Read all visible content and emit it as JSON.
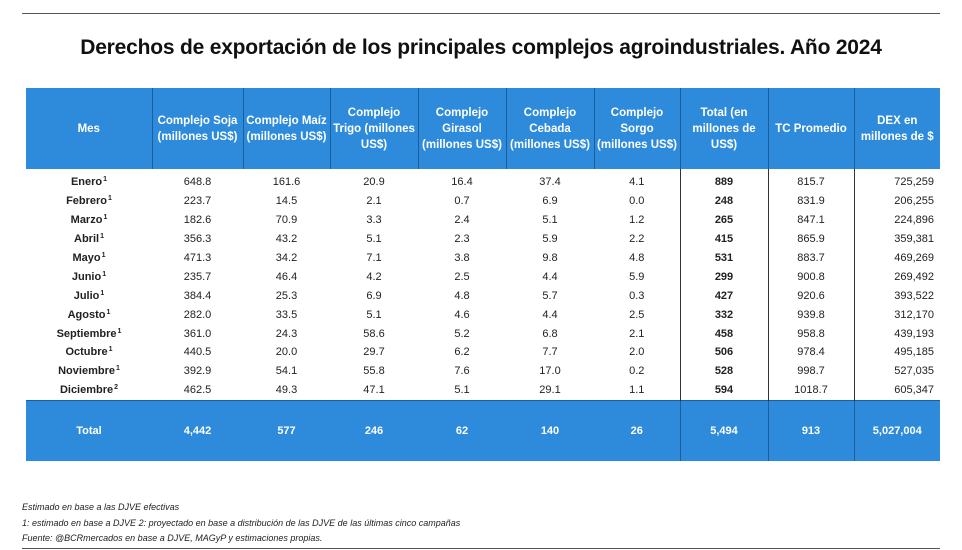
{
  "chart_data": {
    "type": "table",
    "title": "Derechos de exportación de los principales complejos agroindustriales. Año 2024",
    "columns": [
      "Mes",
      "Complejo Soja (millones US$)",
      "Complejo Maíz (millones US$)",
      "Complejo Trigo (millones US$)",
      "Complejo Girasol (millones US$)",
      "Complejo Cebada (millones US$)",
      "Complejo Sorgo (millones US$)",
      "Total (en millones de US$)",
      "TC Promedio",
      "DEX en millones de $"
    ],
    "rows": [
      {
        "mes": "Enero",
        "nota": "1",
        "values": [
          "648.8",
          "161.6",
          "20.9",
          "16.4",
          "37.4",
          "4.1",
          "889",
          "815.7",
          "725,259"
        ]
      },
      {
        "mes": "Febrero",
        "nota": "1",
        "values": [
          "223.7",
          "14.5",
          "2.1",
          "0.7",
          "6.9",
          "0.0",
          "248",
          "831.9",
          "206,255"
        ]
      },
      {
        "mes": "Marzo",
        "nota": "1",
        "values": [
          "182.6",
          "70.9",
          "3.3",
          "2.4",
          "5.1",
          "1.2",
          "265",
          "847.1",
          "224,896"
        ]
      },
      {
        "mes": "Abril",
        "nota": "1",
        "values": [
          "356.3",
          "43.2",
          "5.1",
          "2.3",
          "5.9",
          "2.2",
          "415",
          "865.9",
          "359,381"
        ]
      },
      {
        "mes": "Mayo",
        "nota": "1",
        "values": [
          "471.3",
          "34.2",
          "7.1",
          "3.8",
          "9.8",
          "4.8",
          "531",
          "883.7",
          "469,269"
        ]
      },
      {
        "mes": "Junio",
        "nota": "1",
        "values": [
          "235.7",
          "46.4",
          "4.2",
          "2.5",
          "4.4",
          "5.9",
          "299",
          "900.8",
          "269,492"
        ]
      },
      {
        "mes": "Julio",
        "nota": "1",
        "values": [
          "384.4",
          "25.3",
          "6.9",
          "4.8",
          "5.7",
          "0.3",
          "427",
          "920.6",
          "393,522"
        ]
      },
      {
        "mes": "Agosto",
        "nota": "1",
        "values": [
          "282.0",
          "33.5",
          "5.1",
          "4.6",
          "4.4",
          "2.5",
          "332",
          "939.8",
          "312,170"
        ]
      },
      {
        "mes": "Septiembre",
        "nota": "1",
        "values": [
          "361.0",
          "24.3",
          "58.6",
          "5.2",
          "6.8",
          "2.1",
          "458",
          "958.8",
          "439,193"
        ]
      },
      {
        "mes": "Octubre",
        "nota": "1",
        "values": [
          "440.5",
          "20.0",
          "29.7",
          "6.2",
          "7.7",
          "2.0",
          "506",
          "978.4",
          "495,185"
        ]
      },
      {
        "mes": "Noviembre",
        "nota": "1",
        "values": [
          "392.9",
          "54.1",
          "55.8",
          "7.6",
          "17.0",
          "0.2",
          "528",
          "998.7",
          "527,035"
        ]
      },
      {
        "mes": "Diciembre",
        "nota": "2",
        "values": [
          "462.5",
          "49.3",
          "47.1",
          "5.1",
          "29.1",
          "1.1",
          "594",
          "1018.7",
          "605,347"
        ]
      }
    ],
    "total": {
      "label": "Total",
      "values": [
        "4,442",
        "577",
        "246",
        "62",
        "140",
        "26",
        "5,494",
        "913",
        "5,027,004"
      ]
    },
    "notes": [
      "Estimado en base a las DJVE efectivas",
      "1: estimado en base a DJVE 2: proyectado en base a distribución de las DJVE de las últimas cinco campañas",
      "Fuente: @BCRmercados en base a DJVE, MAGyP y estimaciones propias."
    ]
  },
  "colors": {
    "header_bg": "#2e8bdc",
    "header_text": "#ffffff"
  }
}
